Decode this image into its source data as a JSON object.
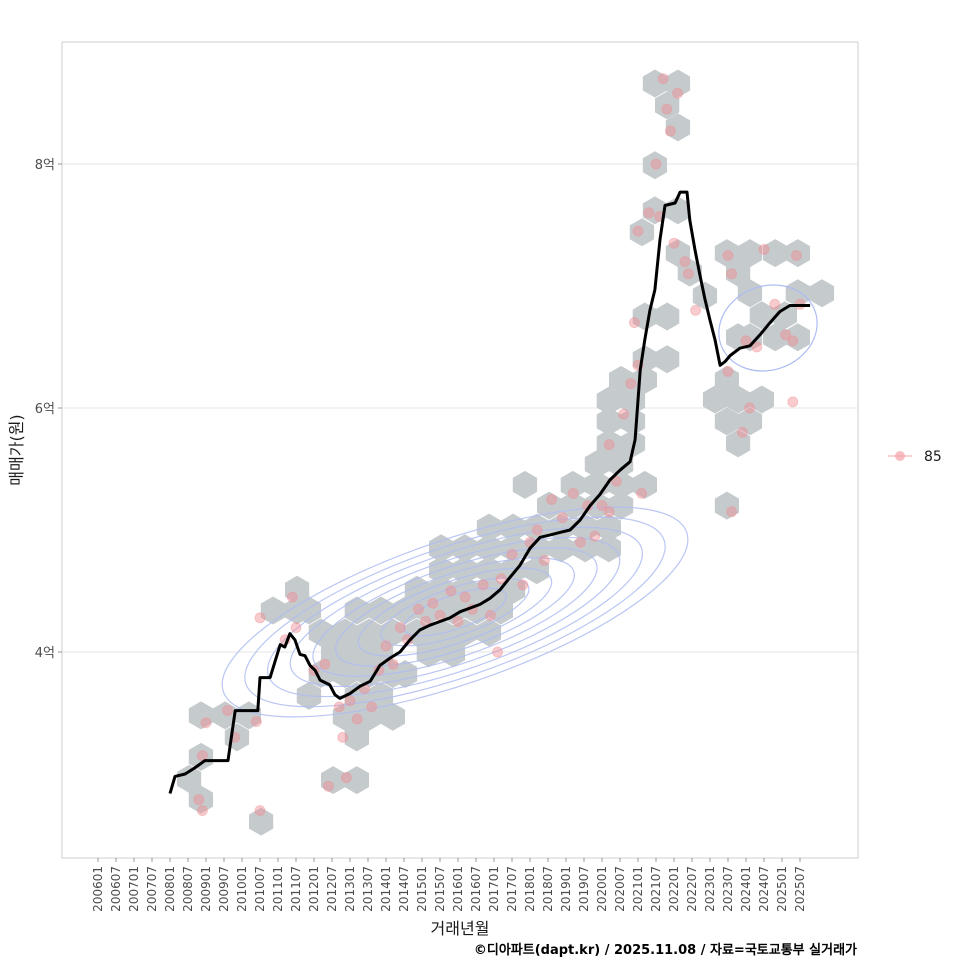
{
  "chart_data": {
    "type": "scatter",
    "title": "",
    "xlabel": "거래년월",
    "ylabel": "매매가(원)",
    "caption": "©디아파트(dapt.kr) / 2025.11.08 / 자료=국토교통부 실거래가",
    "ylim": [
      2.4,
      9.1
    ],
    "xlim": [
      2005.0,
      2027.1
    ],
    "y_ticks": [
      {
        "value": 4,
        "label": "4억"
      },
      {
        "value": 6,
        "label": "6억"
      },
      {
        "value": 8,
        "label": "8억"
      }
    ],
    "x_ticks": [
      "200601",
      "200607",
      "200701",
      "200707",
      "200801",
      "200807",
      "200901",
      "200907",
      "201001",
      "201007",
      "201101",
      "201107",
      "201201",
      "201207",
      "201301",
      "201307",
      "201401",
      "201407",
      "201501",
      "201507",
      "201601",
      "201607",
      "201701",
      "201707",
      "201801",
      "201807",
      "201901",
      "201907",
      "202001",
      "202007",
      "202101",
      "202107",
      "202201",
      "202207",
      "202301",
      "202307",
      "202401",
      "202407",
      "202501",
      "202507"
    ],
    "grid": "horizontal",
    "legend": {
      "position": "right",
      "entries": [
        {
          "label": "85",
          "color": "#f4a3a8"
        }
      ]
    },
    "colors": {
      "line": "#000000",
      "points": "#f08c92",
      "hex": "#c5cacd",
      "contour": "#aebcf2",
      "grid": "#e6e6e6"
    },
    "density_contours": {
      "levels": 9
    },
    "trend_line": [
      [
        2008.0,
        2.84
      ],
      [
        2008.14,
        2.98
      ],
      [
        2008.42,
        3.0
      ],
      [
        2008.69,
        3.05
      ],
      [
        2008.97,
        3.11
      ],
      [
        2009.61,
        3.11
      ],
      [
        2009.67,
        3.23
      ],
      [
        2009.81,
        3.52
      ],
      [
        2010.44,
        3.52
      ],
      [
        2010.5,
        3.79
      ],
      [
        2010.78,
        3.79
      ],
      [
        2011.06,
        4.06
      ],
      [
        2011.19,
        4.04
      ],
      [
        2011.33,
        4.15
      ],
      [
        2011.47,
        4.1
      ],
      [
        2011.61,
        3.98
      ],
      [
        2011.75,
        3.97
      ],
      [
        2011.89,
        3.89
      ],
      [
        2012.03,
        3.85
      ],
      [
        2012.17,
        3.77
      ],
      [
        2012.44,
        3.73
      ],
      [
        2012.58,
        3.65
      ],
      [
        2012.72,
        3.62
      ],
      [
        2013.0,
        3.66
      ],
      [
        2013.28,
        3.72
      ],
      [
        2013.56,
        3.76
      ],
      [
        2013.83,
        3.89
      ],
      [
        2014.11,
        3.95
      ],
      [
        2014.39,
        4.0
      ],
      [
        2014.67,
        4.1
      ],
      [
        2014.94,
        4.18
      ],
      [
        2015.22,
        4.22
      ],
      [
        2015.5,
        4.25
      ],
      [
        2015.78,
        4.28
      ],
      [
        2016.06,
        4.33
      ],
      [
        2016.33,
        4.36
      ],
      [
        2016.61,
        4.39
      ],
      [
        2016.89,
        4.44
      ],
      [
        2017.17,
        4.51
      ],
      [
        2017.44,
        4.61
      ],
      [
        2017.72,
        4.71
      ],
      [
        2018.0,
        4.85
      ],
      [
        2018.28,
        4.94
      ],
      [
        2018.56,
        4.96
      ],
      [
        2018.83,
        4.98
      ],
      [
        2019.11,
        5.0
      ],
      [
        2019.39,
        5.08
      ],
      [
        2019.67,
        5.2
      ],
      [
        2019.94,
        5.29
      ],
      [
        2020.22,
        5.41
      ],
      [
        2020.5,
        5.49
      ],
      [
        2020.78,
        5.56
      ],
      [
        2020.92,
        5.74
      ],
      [
        2021.06,
        6.31
      ],
      [
        2021.19,
        6.56
      ],
      [
        2021.33,
        6.8
      ],
      [
        2021.47,
        6.97
      ],
      [
        2021.61,
        7.38
      ],
      [
        2021.75,
        7.66
      ],
      [
        2022.03,
        7.68
      ],
      [
        2022.17,
        7.77
      ],
      [
        2022.36,
        7.77
      ],
      [
        2022.44,
        7.54
      ],
      [
        2022.58,
        7.3
      ],
      [
        2022.72,
        7.09
      ],
      [
        2022.86,
        6.89
      ],
      [
        2023.0,
        6.72
      ],
      [
        2023.14,
        6.56
      ],
      [
        2023.28,
        6.35
      ],
      [
        2023.42,
        6.38
      ],
      [
        2023.56,
        6.43
      ],
      [
        2023.83,
        6.49
      ],
      [
        2024.11,
        6.51
      ],
      [
        2024.39,
        6.6
      ],
      [
        2024.67,
        6.7
      ],
      [
        2024.94,
        6.79
      ],
      [
        2025.22,
        6.84
      ],
      [
        2025.78,
        6.84
      ]
    ],
    "hexbins": [
      [
        2010.53,
        2.61
      ],
      [
        2008.86,
        2.79
      ],
      [
        2012.53,
        2.95
      ],
      [
        2013.19,
        2.95
      ],
      [
        2008.53,
        2.96
      ],
      [
        2008.86,
        3.14
      ],
      [
        2009.86,
        3.3
      ],
      [
        2013.19,
        3.3
      ],
      [
        2008.86,
        3.48
      ],
      [
        2009.53,
        3.48
      ],
      [
        2010.19,
        3.48
      ],
      [
        2012.86,
        3.47
      ],
      [
        2013.53,
        3.47
      ],
      [
        2014.19,
        3.47
      ],
      [
        2011.86,
        3.64
      ],
      [
        2013.19,
        3.64
      ],
      [
        2013.86,
        3.64
      ],
      [
        2012.19,
        3.82
      ],
      [
        2012.86,
        3.82
      ],
      [
        2013.53,
        3.82
      ],
      [
        2014.19,
        3.82
      ],
      [
        2014.53,
        3.82
      ],
      [
        2012.53,
        3.99
      ],
      [
        2013.19,
        3.99
      ],
      [
        2013.86,
        3.99
      ],
      [
        2015.19,
        3.99
      ],
      [
        2015.86,
        3.99
      ],
      [
        2012.19,
        4.16
      ],
      [
        2012.86,
        4.16
      ],
      [
        2013.53,
        4.16
      ],
      [
        2014.19,
        4.16
      ],
      [
        2014.86,
        4.16
      ],
      [
        2015.53,
        4.16
      ],
      [
        2016.19,
        4.16
      ],
      [
        2016.86,
        4.16
      ],
      [
        2010.86,
        4.34
      ],
      [
        2011.53,
        4.34
      ],
      [
        2011.86,
        4.34
      ],
      [
        2013.19,
        4.34
      ],
      [
        2013.86,
        4.34
      ],
      [
        2014.53,
        4.34
      ],
      [
        2015.19,
        4.34
      ],
      [
        2015.86,
        4.34
      ],
      [
        2016.53,
        4.34
      ],
      [
        2017.19,
        4.34
      ],
      [
        2011.53,
        4.51
      ],
      [
        2014.86,
        4.51
      ],
      [
        2015.53,
        4.51
      ],
      [
        2016.19,
        4.51
      ],
      [
        2016.86,
        4.51
      ],
      [
        2017.53,
        4.51
      ],
      [
        2015.53,
        4.67
      ],
      [
        2016.19,
        4.67
      ],
      [
        2016.86,
        4.67
      ],
      [
        2017.53,
        4.67
      ],
      [
        2018.19,
        4.67
      ],
      [
        2015.53,
        4.85
      ],
      [
        2016.19,
        4.85
      ],
      [
        2016.86,
        4.85
      ],
      [
        2017.53,
        4.85
      ],
      [
        2018.19,
        4.85
      ],
      [
        2018.86,
        4.85
      ],
      [
        2019.53,
        4.85
      ],
      [
        2020.19,
        4.85
      ],
      [
        2016.86,
        5.02
      ],
      [
        2017.53,
        5.02
      ],
      [
        2018.19,
        5.02
      ],
      [
        2018.86,
        5.02
      ],
      [
        2019.53,
        5.02
      ],
      [
        2020.19,
        5.02
      ],
      [
        2018.53,
        5.2
      ],
      [
        2019.19,
        5.2
      ],
      [
        2019.86,
        5.2
      ],
      [
        2020.53,
        5.2
      ],
      [
        2023.47,
        5.2
      ],
      [
        2017.86,
        5.37
      ],
      [
        2019.19,
        5.37
      ],
      [
        2019.86,
        5.37
      ],
      [
        2020.53,
        5.37
      ],
      [
        2021.19,
        5.37
      ],
      [
        2019.86,
        5.54
      ],
      [
        2020.53,
        5.54
      ],
      [
        2020.19,
        5.71
      ],
      [
        2020.86,
        5.71
      ],
      [
        2020.19,
        5.89
      ],
      [
        2020.86,
        5.89
      ],
      [
        2023.78,
        5.71
      ],
      [
        2020.19,
        6.06
      ],
      [
        2020.86,
        6.06
      ],
      [
        2023.14,
        6.07
      ],
      [
        2023.47,
        5.89
      ],
      [
        2023.78,
        6.07
      ],
      [
        2024.44,
        6.07
      ],
      [
        2024.11,
        5.89
      ],
      [
        2020.53,
        6.23
      ],
      [
        2021.19,
        6.23
      ],
      [
        2021.19,
        6.4
      ],
      [
        2021.81,
        6.4
      ],
      [
        2023.47,
        6.23
      ],
      [
        2021.19,
        6.75
      ],
      [
        2021.81,
        6.75
      ],
      [
        2023.78,
        6.58
      ],
      [
        2024.11,
        6.58
      ],
      [
        2024.81,
        6.58
      ],
      [
        2025.44,
        6.58
      ],
      [
        2024.44,
        6.76
      ],
      [
        2025.08,
        6.76
      ],
      [
        2022.86,
        6.92
      ],
      [
        2024.11,
        6.94
      ],
      [
        2025.44,
        6.94
      ],
      [
        2026.11,
        6.94
      ],
      [
        2022.44,
        7.11
      ],
      [
        2023.78,
        7.11
      ],
      [
        2022.11,
        7.27
      ],
      [
        2023.47,
        7.27
      ],
      [
        2024.11,
        7.27
      ],
      [
        2024.81,
        7.27
      ],
      [
        2025.44,
        7.27
      ],
      [
        2021.11,
        7.44
      ],
      [
        2021.47,
        7.62
      ],
      [
        2022.11,
        7.62
      ],
      [
        2021.47,
        7.99
      ],
      [
        2022.11,
        8.3
      ],
      [
        2021.81,
        8.48
      ],
      [
        2021.47,
        8.66
      ],
      [
        2022.11,
        8.66
      ]
    ],
    "points": [
      [
        2008.9,
        2.7
      ],
      [
        2008.8,
        2.79
      ],
      [
        2008.9,
        3.15
      ],
      [
        2009.0,
        3.42
      ],
      [
        2009.6,
        3.52
      ],
      [
        2009.8,
        3.3
      ],
      [
        2010.5,
        2.7
      ],
      [
        2010.4,
        3.43
      ],
      [
        2010.5,
        4.28
      ],
      [
        2011.2,
        4.1
      ],
      [
        2011.4,
        4.45
      ],
      [
        2011.5,
        4.2
      ],
      [
        2012.0,
        3.85
      ],
      [
        2012.3,
        3.9
      ],
      [
        2012.4,
        2.9
      ],
      [
        2012.9,
        2.97
      ],
      [
        2012.7,
        3.55
      ],
      [
        2012.8,
        3.3
      ],
      [
        2013.0,
        3.6
      ],
      [
        2013.2,
        3.45
      ],
      [
        2013.4,
        3.7
      ],
      [
        2013.6,
        3.55
      ],
      [
        2013.8,
        3.85
      ],
      [
        2014.0,
        4.05
      ],
      [
        2014.2,
        3.9
      ],
      [
        2014.4,
        4.2
      ],
      [
        2014.6,
        4.1
      ],
      [
        2014.9,
        4.35
      ],
      [
        2015.1,
        4.25
      ],
      [
        2015.3,
        4.4
      ],
      [
        2015.5,
        4.3
      ],
      [
        2015.8,
        4.5
      ],
      [
        2016.0,
        4.25
      ],
      [
        2016.2,
        4.45
      ],
      [
        2016.4,
        4.35
      ],
      [
        2016.7,
        4.55
      ],
      [
        2016.9,
        4.3
      ],
      [
        2017.1,
        4.0
      ],
      [
        2017.2,
        4.6
      ],
      [
        2017.5,
        4.8
      ],
      [
        2017.8,
        4.55
      ],
      [
        2018.0,
        4.9
      ],
      [
        2018.2,
        5.0
      ],
      [
        2018.4,
        4.75
      ],
      [
        2018.6,
        5.25
      ],
      [
        2018.9,
        5.1
      ],
      [
        2019.2,
        5.3
      ],
      [
        2019.4,
        4.9
      ],
      [
        2019.6,
        5.2
      ],
      [
        2019.8,
        4.95
      ],
      [
        2020.0,
        5.2
      ],
      [
        2020.2,
        5.15
      ],
      [
        2020.4,
        5.4
      ],
      [
        2020.2,
        5.7
      ],
      [
        2020.6,
        5.95
      ],
      [
        2020.8,
        6.2
      ],
      [
        2021.1,
        5.3
      ],
      [
        2021.0,
        6.35
      ],
      [
        2020.9,
        6.7
      ],
      [
        2021.0,
        7.45
      ],
      [
        2021.3,
        7.6
      ],
      [
        2021.6,
        7.57
      ],
      [
        2021.5,
        8.0
      ],
      [
        2021.9,
        8.27
      ],
      [
        2021.8,
        8.45
      ],
      [
        2021.7,
        8.7
      ],
      [
        2022.1,
        8.58
      ],
      [
        2022.0,
        7.35
      ],
      [
        2022.3,
        7.2
      ],
      [
        2022.4,
        7.1
      ],
      [
        2022.6,
        6.8
      ],
      [
        2023.5,
        7.25
      ],
      [
        2023.6,
        7.1
      ],
      [
        2023.5,
        6.3
      ],
      [
        2023.6,
        5.15
      ],
      [
        2023.9,
        5.8
      ],
      [
        2024.1,
        6.0
      ],
      [
        2024.0,
        6.55
      ],
      [
        2024.3,
        6.5
      ],
      [
        2024.5,
        7.3
      ],
      [
        2024.8,
        6.85
      ],
      [
        2025.1,
        6.6
      ],
      [
        2025.3,
        6.55
      ],
      [
        2025.3,
        6.05
      ],
      [
        2025.4,
        7.25
      ],
      [
        2025.5,
        6.85
      ]
    ]
  }
}
